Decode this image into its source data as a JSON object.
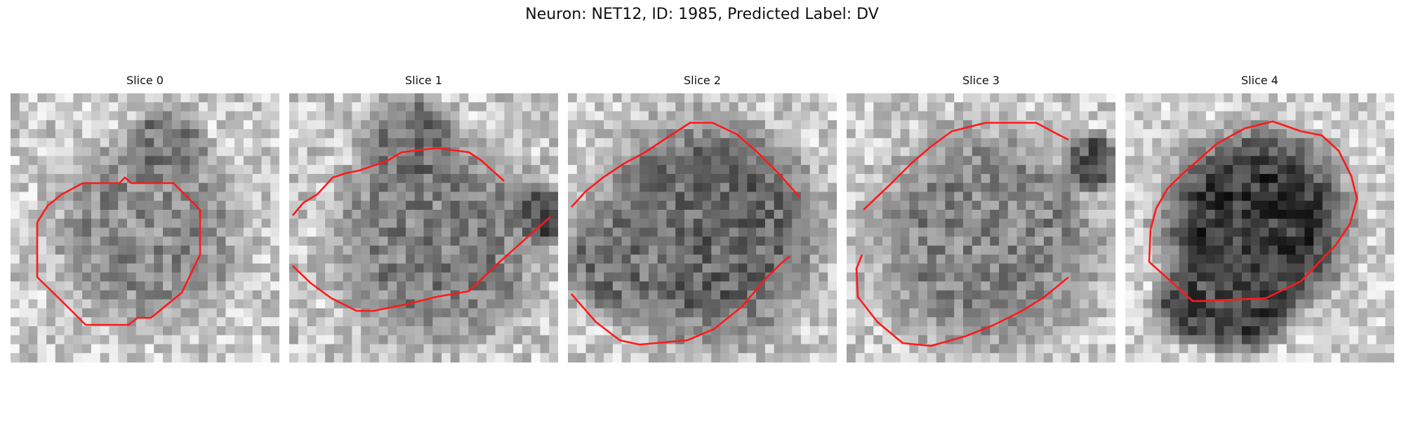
{
  "figure": {
    "title": "Neuron: NET12, ID: 1985, Predicted Label: DV"
  },
  "outline_color": "#ff1a1a",
  "panels": [
    {
      "title": "Slice 0"
    },
    {
      "title": "Slice 1"
    },
    {
      "title": "Slice 2"
    },
    {
      "title": "Slice 3"
    },
    {
      "title": "Slice 4"
    }
  ]
}
